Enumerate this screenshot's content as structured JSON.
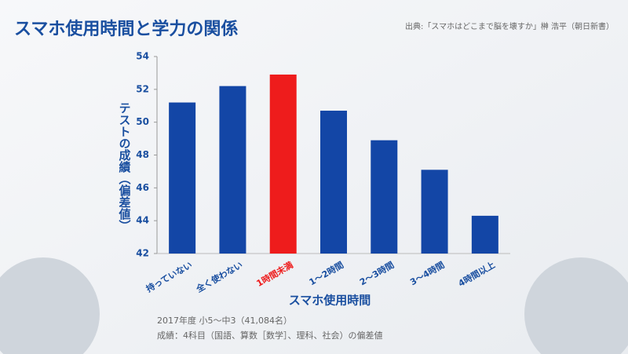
{
  "chart_data": {
    "type": "bar",
    "title": "スマホ使用時間と学力の関係",
    "source": "出典:「スマホはどこまで脳を壊すか」榊 浩平（朝日新書）",
    "y_label": "テストの成績（偏差値）",
    "x_label": "スマホ使用時間",
    "notes": [
      "2017年度 小5〜中3（41,084名）",
      "成績：4科目（国語、算数［数学］、理科、社会）の偏差値"
    ],
    "categories": [
      "持っていない",
      "全く使わない",
      "1時間未満",
      "1〜2時間",
      "2〜3時間",
      "3〜4時間",
      "4時間以上"
    ],
    "values": [
      51.2,
      52.2,
      52.9,
      50.7,
      48.9,
      47.1,
      44.3
    ],
    "colors": [
      "#1346a6",
      "#1346a6",
      "#ee1c1c",
      "#1346a6",
      "#1346a6",
      "#1346a6",
      "#1346a6"
    ],
    "ylim": [
      42,
      54
    ],
    "yticks": [
      42,
      44,
      46,
      48,
      50,
      52,
      54
    ],
    "grid": false
  }
}
